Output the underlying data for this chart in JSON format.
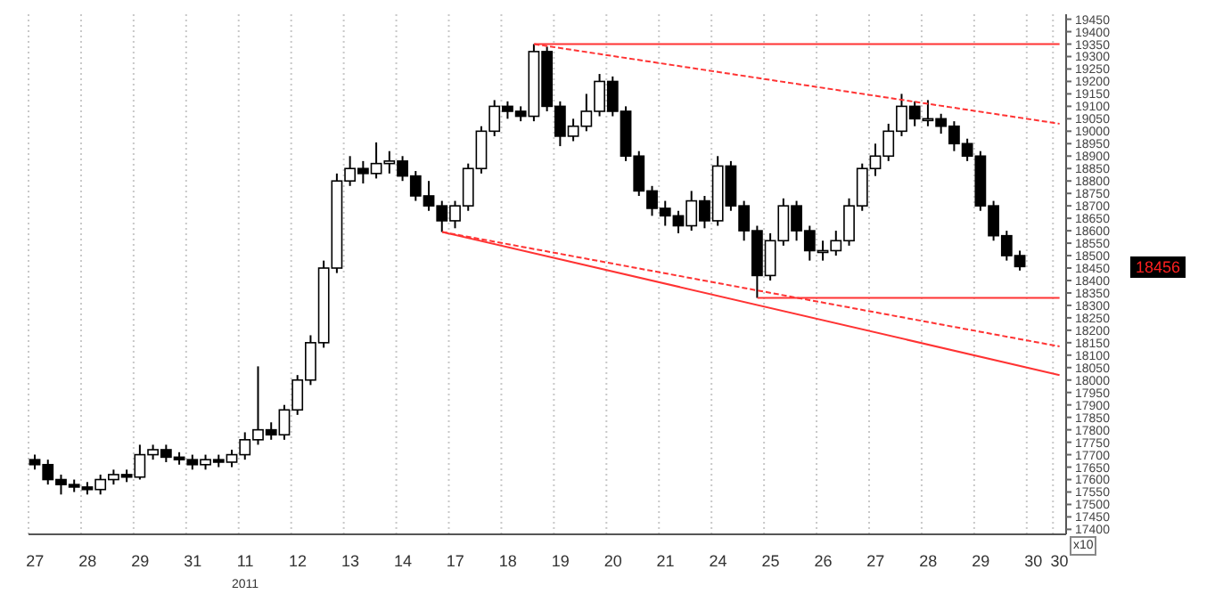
{
  "chart_data": {
    "type": "candlestick",
    "categories": [
      "27",
      null,
      null,
      null,
      "28",
      null,
      null,
      null,
      "29",
      null,
      null,
      null,
      "31",
      null,
      null,
      null,
      "11",
      null,
      null,
      null,
      "12",
      null,
      null,
      null,
      "13",
      null,
      null,
      null,
      "14",
      null,
      null,
      null,
      "17",
      null,
      null,
      null,
      "18",
      null,
      null,
      null,
      "19",
      null,
      null,
      null,
      "20",
      null,
      null,
      null,
      "21",
      null,
      null,
      null,
      "24",
      null,
      null,
      null,
      "25",
      null,
      null,
      null,
      "26",
      null,
      null,
      null,
      "27",
      null,
      null,
      null,
      "28",
      null,
      null,
      null,
      "29",
      null,
      null,
      null,
      "30",
      null,
      "30"
    ],
    "ohlc": [
      [
        17680,
        17700,
        17640,
        17660
      ],
      [
        17660,
        17680,
        17580,
        17600
      ],
      [
        17600,
        17620,
        17540,
        17580
      ],
      [
        17580,
        17600,
        17550,
        17570
      ],
      [
        17570,
        17590,
        17540,
        17560
      ],
      [
        17560,
        17620,
        17540,
        17600
      ],
      [
        17600,
        17640,
        17580,
        17620
      ],
      [
        17620,
        17640,
        17590,
        17610
      ],
      [
        17610,
        17740,
        17600,
        17700
      ],
      [
        17700,
        17740,
        17680,
        17720
      ],
      [
        17720,
        17740,
        17670,
        17690
      ],
      [
        17690,
        17710,
        17660,
        17680
      ],
      [
        17680,
        17700,
        17640,
        17660
      ],
      [
        17660,
        17700,
        17640,
        17680
      ],
      [
        17680,
        17700,
        17650,
        17670
      ],
      [
        17670,
        17720,
        17650,
        17700
      ],
      [
        17700,
        17790,
        17680,
        17760
      ],
      [
        17760,
        18055,
        17740,
        17800
      ],
      [
        17800,
        17830,
        17760,
        17780
      ],
      [
        17780,
        17900,
        17760,
        17880
      ],
      [
        17880,
        18020,
        17860,
        18000
      ],
      [
        18000,
        18180,
        17980,
        18150
      ],
      [
        18150,
        18480,
        18130,
        18450
      ],
      [
        18450,
        18830,
        18430,
        18800
      ],
      [
        18800,
        18900,
        18780,
        18850
      ],
      [
        18850,
        18880,
        18790,
        18830
      ],
      [
        18830,
        18955,
        18810,
        18870
      ],
      [
        18870,
        18920,
        18830,
        18880
      ],
      [
        18880,
        18900,
        18800,
        18820
      ],
      [
        18820,
        18840,
        18720,
        18740
      ],
      [
        18740,
        18800,
        18680,
        18700
      ],
      [
        18700,
        18720,
        18595,
        18640
      ],
      [
        18640,
        18720,
        18610,
        18700
      ],
      [
        18700,
        18870,
        18680,
        18850
      ],
      [
        18850,
        19020,
        18830,
        19000
      ],
      [
        19000,
        19125,
        18980,
        19100
      ],
      [
        19100,
        19120,
        19050,
        19080
      ],
      [
        19080,
        19100,
        19040,
        19060
      ],
      [
        19060,
        19350,
        19040,
        19320
      ],
      [
        19320,
        19340,
        19080,
        19100
      ],
      [
        19100,
        19120,
        18940,
        18980
      ],
      [
        18980,
        19050,
        18960,
        19020
      ],
      [
        19020,
        19150,
        19000,
        19080
      ],
      [
        19080,
        19230,
        19060,
        19200
      ],
      [
        19200,
        19220,
        19060,
        19080
      ],
      [
        19080,
        19100,
        18880,
        18900
      ],
      [
        18900,
        18920,
        18740,
        18760
      ],
      [
        18760,
        18780,
        18660,
        18690
      ],
      [
        18690,
        18720,
        18620,
        18660
      ],
      [
        18660,
        18680,
        18590,
        18620
      ],
      [
        18620,
        18760,
        18600,
        18720
      ],
      [
        18720,
        18740,
        18610,
        18640
      ],
      [
        18640,
        18900,
        18620,
        18860
      ],
      [
        18860,
        18880,
        18680,
        18700
      ],
      [
        18700,
        18720,
        18560,
        18600
      ],
      [
        18600,
        18620,
        18330,
        18420
      ],
      [
        18420,
        18590,
        18400,
        18560
      ],
      [
        18560,
        18730,
        18540,
        18700
      ],
      [
        18700,
        18720,
        18560,
        18600
      ],
      [
        18600,
        18620,
        18480,
        18520
      ],
      [
        18520,
        18560,
        18480,
        18520
      ],
      [
        18520,
        18600,
        18500,
        18560
      ],
      [
        18560,
        18730,
        18540,
        18700
      ],
      [
        18700,
        18870,
        18680,
        18850
      ],
      [
        18850,
        18950,
        18820,
        18900
      ],
      [
        18900,
        19030,
        18880,
        19000
      ],
      [
        19000,
        19150,
        18980,
        19100
      ],
      [
        19100,
        19120,
        19020,
        19050
      ],
      [
        19050,
        19125,
        19020,
        19050
      ],
      [
        19050,
        19070,
        18990,
        19020
      ],
      [
        19020,
        19040,
        18920,
        18950
      ],
      [
        18950,
        18970,
        18880,
        18900
      ],
      [
        18900,
        18920,
        18680,
        18700
      ],
      [
        18700,
        18720,
        18560,
        18580
      ],
      [
        18580,
        18600,
        18480,
        18500
      ],
      [
        18500,
        18520,
        18440,
        18456
      ],
      null,
      null,
      null
    ],
    "color": "#000000",
    "series": [
      {
        "type": "line",
        "line_style": "solid",
        "color": "#ff3333",
        "values": [
          null,
          null,
          null,
          null,
          null,
          null,
          null,
          null,
          null,
          null,
          null,
          null,
          null,
          null,
          null,
          null,
          null,
          null,
          null,
          null,
          null,
          null,
          null,
          null,
          null,
          null,
          null,
          null,
          null,
          null,
          null,
          null,
          null,
          null,
          null,
          null,
          null,
          null,
          19350,
          null,
          null,
          null,
          null,
          null,
          null,
          null,
          null,
          null,
          null,
          null,
          null,
          null,
          null,
          null,
          null,
          null,
          null,
          null,
          null,
          null,
          null,
          null,
          null,
          null,
          null,
          null,
          null,
          null,
          null,
          null,
          null,
          null,
          null,
          null,
          null,
          null,
          null,
          null,
          19350
        ]
      },
      {
        "type": "line",
        "line_style": "dashed",
        "color": "#ff3333",
        "values": [
          null,
          null,
          null,
          null,
          null,
          null,
          null,
          null,
          null,
          null,
          null,
          null,
          null,
          null,
          null,
          null,
          null,
          null,
          null,
          null,
          null,
          null,
          null,
          null,
          null,
          null,
          null,
          null,
          null,
          null,
          null,
          null,
          null,
          null,
          null,
          null,
          null,
          null,
          19350,
          null,
          null,
          null,
          null,
          null,
          null,
          null,
          null,
          null,
          null,
          null,
          null,
          null,
          null,
          null,
          null,
          null,
          null,
          null,
          null,
          null,
          null,
          null,
          null,
          null,
          null,
          null,
          null,
          null,
          null,
          null,
          null,
          null,
          null,
          null,
          null,
          null,
          null,
          null,
          19030
        ]
      },
      {
        "type": "line",
        "line_style": "solid",
        "color": "#ff3333",
        "values": [
          null,
          null,
          null,
          null,
          null,
          null,
          null,
          null,
          null,
          null,
          null,
          null,
          null,
          null,
          null,
          null,
          null,
          null,
          null,
          null,
          null,
          null,
          null,
          null,
          null,
          null,
          null,
          null,
          null,
          null,
          null,
          18595,
          null,
          null,
          null,
          null,
          null,
          null,
          null,
          null,
          null,
          null,
          null,
          null,
          null,
          null,
          null,
          null,
          null,
          null,
          null,
          null,
          null,
          null,
          null,
          null,
          null,
          null,
          null,
          null,
          null,
          null,
          null,
          null,
          null,
          null,
          null,
          null,
          null,
          null,
          null,
          null,
          null,
          null,
          null,
          null,
          null,
          null,
          18020
        ]
      },
      {
        "type": "line",
        "line_style": "dashed",
        "color": "#ff3333",
        "values": [
          null,
          null,
          null,
          null,
          null,
          null,
          null,
          null,
          null,
          null,
          null,
          null,
          null,
          null,
          null,
          null,
          null,
          null,
          null,
          null,
          null,
          null,
          null,
          null,
          null,
          null,
          null,
          null,
          null,
          null,
          null,
          18595,
          null,
          null,
          null,
          null,
          null,
          null,
          null,
          null,
          null,
          null,
          null,
          null,
          null,
          null,
          null,
          null,
          null,
          null,
          null,
          null,
          null,
          null,
          null,
          null,
          null,
          null,
          null,
          null,
          null,
          null,
          null,
          null,
          null,
          null,
          null,
          null,
          null,
          null,
          null,
          null,
          null,
          null,
          null,
          null,
          null,
          null,
          18135
        ]
      },
      {
        "type": "line",
        "line_style": "solid",
        "color": "#ff3333",
        "values": [
          null,
          null,
          null,
          null,
          null,
          null,
          null,
          null,
          null,
          null,
          null,
          null,
          null,
          null,
          null,
          null,
          null,
          null,
          null,
          null,
          null,
          null,
          null,
          null,
          null,
          null,
          null,
          null,
          null,
          null,
          null,
          null,
          null,
          null,
          null,
          null,
          null,
          null,
          null,
          null,
          null,
          null,
          null,
          null,
          null,
          null,
          null,
          null,
          null,
          null,
          null,
          null,
          null,
          null,
          null,
          18330,
          null,
          null,
          null,
          null,
          null,
          null,
          null,
          null,
          null,
          null,
          null,
          null,
          null,
          null,
          null,
          null,
          null,
          null,
          null,
          null,
          null,
          null,
          18330
        ]
      }
    ],
    "ylim": [
      17380,
      19470
    ],
    "yticks": [
      17400,
      17450,
      17500,
      17550,
      17600,
      17650,
      17700,
      17750,
      17800,
      17850,
      17900,
      17950,
      18000,
      18050,
      18100,
      18150,
      18200,
      18250,
      18300,
      18350,
      18400,
      18450,
      18500,
      18550,
      18600,
      18650,
      18700,
      18750,
      18800,
      18850,
      18900,
      18950,
      19000,
      19050,
      19100,
      19150,
      19200,
      19250,
      19300,
      19350,
      19400,
      19450
    ],
    "grid": "x",
    "annotations": [
      "18456",
      "2011",
      "x10"
    ]
  }
}
